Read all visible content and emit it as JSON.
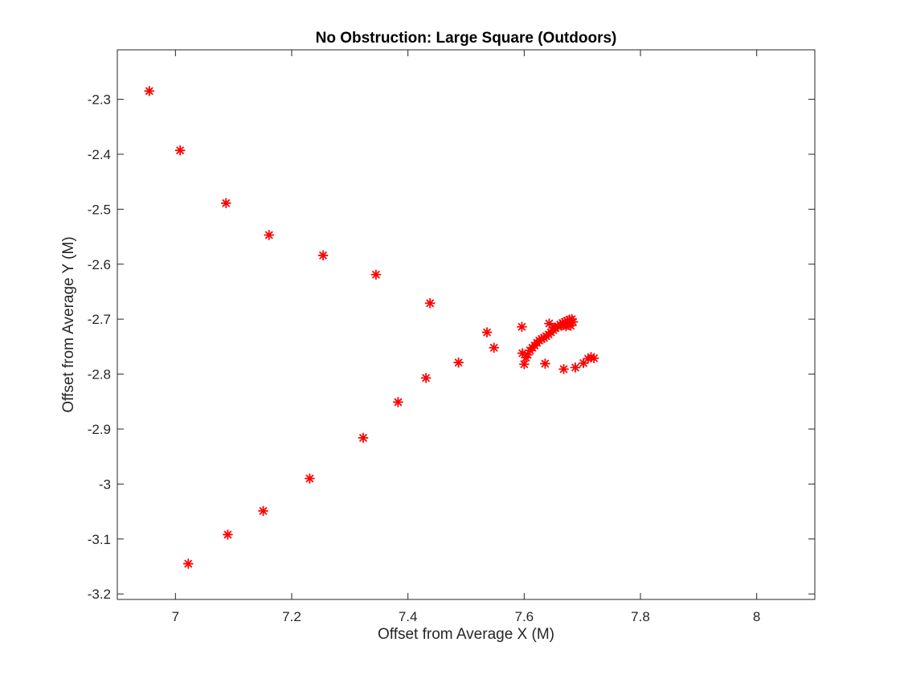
{
  "chart_data": {
    "type": "scatter",
    "title": "No Obstruction: Large Square (Outdoors)",
    "xlabel": "Offset from Average X (M)",
    "ylabel": "Offset from Average Y (M)",
    "xlim": [
      6.9,
      8.1
    ],
    "ylim": [
      -3.21,
      -2.21
    ],
    "xticks": [
      7,
      7.2,
      7.4,
      7.6,
      7.8,
      8
    ],
    "xtick_labels": [
      "7",
      "7.2",
      "7.4",
      "7.6",
      "7.8",
      "8"
    ],
    "yticks": [
      -2.3,
      -2.4,
      -2.5,
      -2.6,
      -2.7,
      -2.8,
      -2.9,
      -3.0,
      -3.1,
      -3.2
    ],
    "ytick_labels": [
      "-2.3",
      "-2.4",
      "-2.5",
      "-2.6",
      "-2.7",
      "-2.8",
      "-2.9",
      "-3",
      "-3.1",
      "-3.2"
    ],
    "grid": false,
    "marker": "asterisk",
    "marker_color": "#ff0000",
    "series": [
      {
        "points": [
          [
            6.955,
            -2.285
          ],
          [
            7.008,
            -2.393
          ],
          [
            7.087,
            -2.489
          ],
          [
            7.161,
            -2.547
          ],
          [
            7.254,
            -2.584
          ],
          [
            7.345,
            -2.619
          ],
          [
            7.438,
            -2.671
          ],
          [
            7.536,
            -2.724
          ],
          [
            7.548,
            -2.752
          ],
          [
            7.596,
            -2.714
          ],
          [
            7.487,
            -2.779
          ],
          [
            7.431,
            -2.807
          ],
          [
            7.383,
            -2.851
          ],
          [
            7.323,
            -2.916
          ],
          [
            7.231,
            -2.99
          ],
          [
            7.151,
            -3.049
          ],
          [
            7.09,
            -3.092
          ],
          [
            7.022,
            -3.145
          ],
          [
            7.597,
            -2.762
          ],
          [
            7.6,
            -2.782
          ],
          [
            7.603,
            -2.77
          ],
          [
            7.606,
            -2.765
          ],
          [
            7.61,
            -2.757
          ],
          [
            7.614,
            -2.752
          ],
          [
            7.618,
            -2.748
          ],
          [
            7.622,
            -2.743
          ],
          [
            7.626,
            -2.739
          ],
          [
            7.63,
            -2.736
          ],
          [
            7.634,
            -2.734
          ],
          [
            7.638,
            -2.731
          ],
          [
            7.642,
            -2.728
          ],
          [
            7.646,
            -2.724
          ],
          [
            7.65,
            -2.72
          ],
          [
            7.654,
            -2.716
          ],
          [
            7.658,
            -2.713
          ],
          [
            7.662,
            -2.71
          ],
          [
            7.666,
            -2.707
          ],
          [
            7.67,
            -2.705
          ],
          [
            7.674,
            -2.703
          ],
          [
            7.678,
            -2.701
          ],
          [
            7.682,
            -2.7
          ],
          [
            7.684,
            -2.705
          ],
          [
            7.68,
            -2.712
          ],
          [
            7.672,
            -2.713
          ],
          [
            7.664,
            -2.712
          ],
          [
            7.652,
            -2.716
          ],
          [
            7.643,
            -2.708
          ],
          [
            7.636,
            -2.781
          ],
          [
            7.668,
            -2.791
          ],
          [
            7.688,
            -2.788
          ],
          [
            7.702,
            -2.78
          ],
          [
            7.71,
            -2.772
          ],
          [
            7.715,
            -2.769
          ],
          [
            7.72,
            -2.771
          ]
        ]
      }
    ]
  }
}
